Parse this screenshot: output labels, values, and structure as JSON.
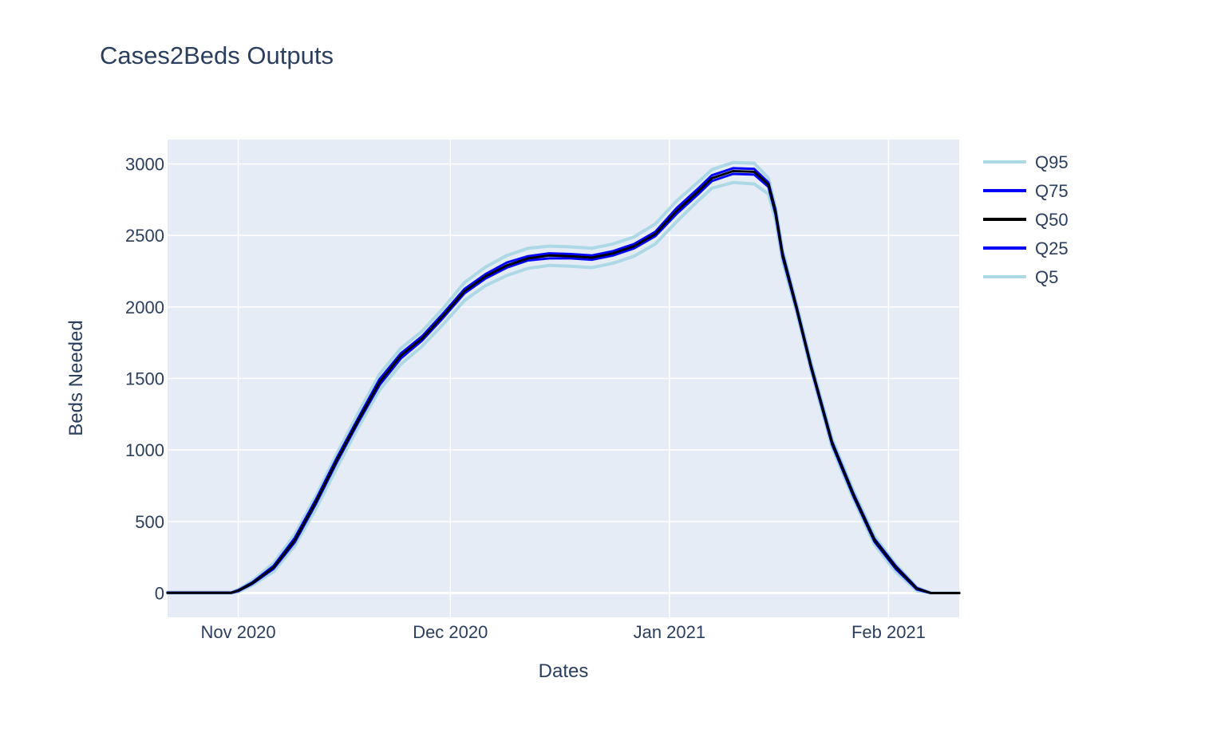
{
  "chart_data": {
    "type": "line",
    "title": "Cases2Beds Outputs",
    "xlabel": "Dates",
    "ylabel": "Beds Needed",
    "xlim": [
      "2020-10-22",
      "2021-02-11"
    ],
    "ylim": [
      -170,
      3170
    ],
    "x_ticks": [
      {
        "date": "2020-11-01",
        "label": "Nov 2020"
      },
      {
        "date": "2020-12-01",
        "label": "Dec 2020"
      },
      {
        "date": "2021-01-01",
        "label": "Jan 2021"
      },
      {
        "date": "2021-02-01",
        "label": "Feb 2021"
      }
    ],
    "y_ticks": [
      0,
      500,
      1000,
      1500,
      2000,
      2500,
      3000
    ],
    "grid": true,
    "legend_position": "right",
    "colors": {
      "plot_bg": "#e5ecf6",
      "grid": "#ffffff",
      "text": "#2a3f5f",
      "q95": "#add8e6",
      "q75": "#0000ff",
      "q50": "#000000",
      "q25": "#0000ff",
      "q5": "#add8e6"
    },
    "x": [
      "2020-10-22",
      "2020-10-25",
      "2020-10-28",
      "2020-10-31",
      "2020-11-01",
      "2020-11-03",
      "2020-11-06",
      "2020-11-09",
      "2020-11-12",
      "2020-11-15",
      "2020-11-18",
      "2020-11-21",
      "2020-11-24",
      "2020-11-27",
      "2020-11-30",
      "2020-12-03",
      "2020-12-06",
      "2020-12-09",
      "2020-12-12",
      "2020-12-15",
      "2020-12-18",
      "2020-12-21",
      "2020-12-24",
      "2020-12-27",
      "2020-12-30",
      "2021-01-02",
      "2021-01-05",
      "2021-01-07",
      "2021-01-10",
      "2021-01-13",
      "2021-01-15",
      "2021-01-16",
      "2021-01-17",
      "2021-01-19",
      "2021-01-21",
      "2021-01-24",
      "2021-01-27",
      "2021-01-30",
      "2021-02-02",
      "2021-02-05",
      "2021-02-07",
      "2021-02-09",
      "2021-02-11"
    ],
    "series": [
      {
        "name": "Q95",
        "values": [
          5,
          5,
          5,
          5,
          25,
          85,
          210,
          410,
          680,
          980,
          1260,
          1530,
          1710,
          1830,
          1990,
          2170,
          2280,
          2360,
          2410,
          2425,
          2420,
          2410,
          2440,
          2490,
          2580,
          2740,
          2870,
          2960,
          3010,
          3005,
          2900,
          2700,
          2400,
          2020,
          1620,
          1080,
          720,
          400,
          200,
          40,
          0,
          0,
          0
        ]
      },
      {
        "name": "Q75",
        "values": [
          3,
          3,
          3,
          3,
          20,
          75,
          190,
          385,
          655,
          950,
          1225,
          1495,
          1675,
          1795,
          1955,
          2125,
          2230,
          2310,
          2355,
          2375,
          2370,
          2360,
          2390,
          2440,
          2525,
          2690,
          2825,
          2920,
          2970,
          2965,
          2870,
          2680,
          2380,
          2000,
          1600,
          1060,
          700,
          380,
          190,
          35,
          0,
          0,
          0
        ]
      },
      {
        "name": "Q50",
        "values": [
          2,
          2,
          2,
          2,
          17,
          70,
          180,
          370,
          640,
          935,
          1210,
          1475,
          1660,
          1780,
          1940,
          2110,
          2215,
          2290,
          2340,
          2360,
          2355,
          2345,
          2375,
          2425,
          2510,
          2670,
          2805,
          2900,
          2950,
          2945,
          2855,
          2665,
          2365,
          1990,
          1590,
          1050,
          690,
          370,
          180,
          30,
          0,
          0,
          0
        ]
      },
      {
        "name": "Q25",
        "values": [
          1,
          1,
          1,
          1,
          14,
          65,
          170,
          355,
          625,
          920,
          1195,
          1455,
          1640,
          1765,
          1925,
          2095,
          2200,
          2275,
          2325,
          2340,
          2340,
          2330,
          2360,
          2410,
          2495,
          2650,
          2785,
          2880,
          2930,
          2925,
          2840,
          2650,
          2350,
          1980,
          1580,
          1040,
          680,
          360,
          170,
          25,
          0,
          0,
          0
        ]
      },
      {
        "name": "Q5",
        "values": [
          0,
          0,
          0,
          0,
          8,
          55,
          150,
          330,
          590,
          880,
          1160,
          1420,
          1600,
          1725,
          1880,
          2045,
          2150,
          2220,
          2270,
          2290,
          2285,
          2275,
          2305,
          2355,
          2440,
          2595,
          2740,
          2830,
          2870,
          2860,
          2790,
          2610,
          2320,
          1960,
          1560,
          1020,
          660,
          340,
          150,
          15,
          0,
          0,
          0
        ]
      }
    ]
  }
}
